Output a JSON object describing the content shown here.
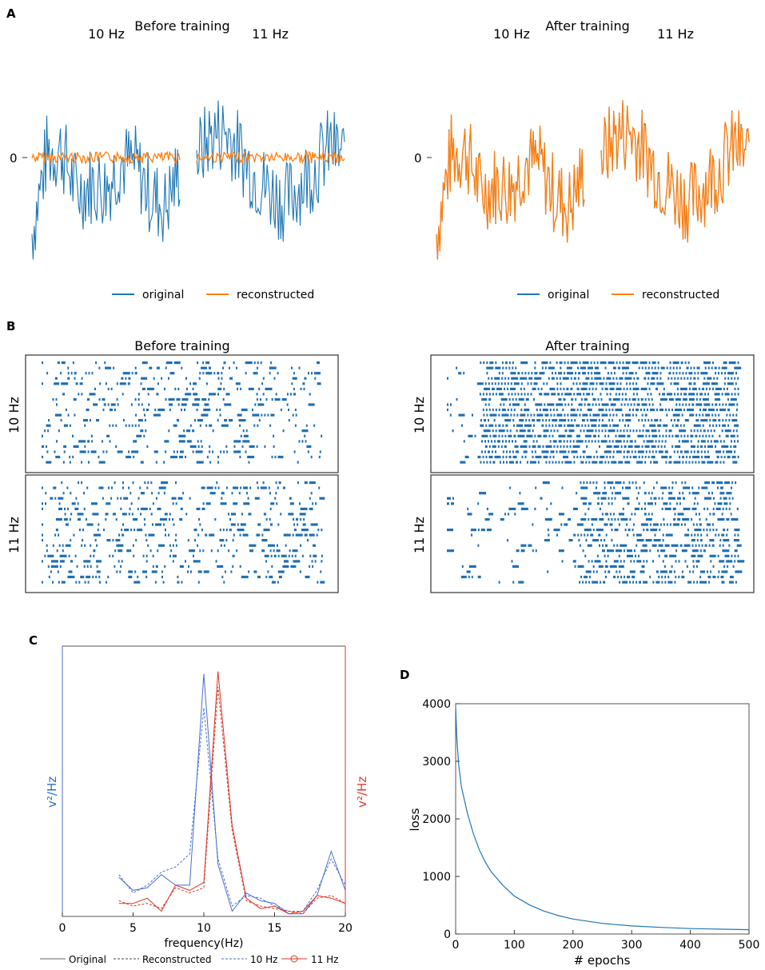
{
  "panels": {
    "A": {
      "letter": "A",
      "before_title": "Before training",
      "after_title": "After training",
      "label_10": "10 Hz",
      "label_11": "11 Hz",
      "zero_tick": "0",
      "legend": {
        "original": "original",
        "reconstructed": "reconstructed"
      }
    },
    "B": {
      "letter": "B",
      "before_title": "Before training",
      "after_title": "After training",
      "row_10": "10 Hz",
      "row_11": "11 Hz"
    },
    "C": {
      "letter": "C",
      "ylabel_left": "v²/Hz",
      "ylabel_right": "v²/Hz",
      "xlabel": "frequency(Hz)",
      "xticks": [
        "0",
        "5",
        "10",
        "15",
        "20"
      ],
      "legend": {
        "original": "Original",
        "reconstructed": "Reconstructed",
        "hz10": "10 Hz",
        "hz11": "11 Hz"
      }
    },
    "D": {
      "letter": "D",
      "xlabel": "# epochs",
      "ylabel": "loss",
      "xticks": [
        "0",
        "100",
        "200",
        "300",
        "400",
        "500"
      ],
      "yticks": [
        "0",
        "1000",
        "2000",
        "3000",
        "4000"
      ]
    }
  },
  "colors": {
    "blue": "#1f77b4",
    "orange": "#ff7f0e",
    "spike": "#1f6fb2",
    "psd_blue": "#4a6fd0",
    "psd_red": "#d9382a"
  },
  "chart_data": [
    {
      "id": "A-before",
      "type": "line",
      "title": "Before training",
      "segments": [
        "10 Hz",
        "11 Hz"
      ],
      "series": [
        {
          "name": "original",
          "values": [
            -0.45,
            0.6,
            0.65,
            0.1,
            0.2,
            0.15,
            0.5,
            0.45,
            0.05,
            -0.1,
            0.4,
            0.55,
            0.85,
            0.9,
            0.6,
            0.3,
            0.1,
            -0.05,
            0.2,
            0.4,
            0.7,
            0.55
          ]
        },
        {
          "name": "reconstructed",
          "values": [
            0.0,
            0.0,
            0.0,
            0.0,
            0.0,
            0.0,
            0.0,
            0.0,
            0.0,
            0.0,
            0.0,
            0.0,
            0.0,
            0.0,
            0.0,
            0.0,
            0.0,
            0.0,
            0.0,
            0.0,
            0.0,
            0.0
          ]
        }
      ]
    },
    {
      "id": "A-after",
      "type": "line",
      "title": "After training",
      "segments": [
        "10 Hz",
        "11 Hz"
      ],
      "series": [
        {
          "name": "original",
          "values": [
            -0.45,
            0.6,
            0.65,
            0.1,
            0.2,
            0.15,
            0.5,
            0.45,
            0.05,
            -0.1,
            0.4,
            0.55,
            0.85,
            0.9,
            0.6,
            0.3,
            0.1,
            -0.05,
            0.2,
            0.4,
            0.7,
            0.55
          ]
        },
        {
          "name": "reconstructed",
          "values": [
            -0.45,
            0.6,
            0.65,
            0.1,
            0.2,
            0.15,
            0.5,
            0.45,
            0.05,
            -0.1,
            0.4,
            0.55,
            0.85,
            0.9,
            0.6,
            0.3,
            0.1,
            -0.05,
            0.2,
            0.4,
            0.7,
            0.55
          ]
        }
      ]
    },
    {
      "id": "B-raster",
      "type": "raster",
      "rows_per_block": 20,
      "blocks": [
        "10 Hz",
        "11 Hz"
      ],
      "density": {
        "before_10": 0.25,
        "before_11": 0.3,
        "after_10": 0.5,
        "after_11": 0.35
      }
    },
    {
      "id": "C-psd",
      "type": "line",
      "xlabel": "frequency(Hz)",
      "xlim": [
        0,
        20
      ],
      "x": [
        4,
        5,
        6,
        7,
        8,
        9,
        10,
        11,
        12,
        13,
        14,
        15,
        16,
        17,
        18,
        19,
        20
      ],
      "series": [
        {
          "name": "Original 10 Hz",
          "values": [
            0.15,
            0.1,
            0.11,
            0.16,
            0.12,
            0.12,
            0.93,
            0.2,
            0.02,
            0.09,
            0.06,
            0.05,
            0.01,
            0.01,
            0.08,
            0.25,
            0.1
          ]
        },
        {
          "name": "Reconstructed 10 Hz",
          "values": [
            0.16,
            0.09,
            0.12,
            0.17,
            0.19,
            0.24,
            0.8,
            0.22,
            0.04,
            0.08,
            0.07,
            0.04,
            0.02,
            0.02,
            0.1,
            0.22,
            0.12
          ]
        },
        {
          "name": "Original 11 Hz",
          "values": [
            0.05,
            0.05,
            0.07,
            0.02,
            0.12,
            0.1,
            0.13,
            0.94,
            0.35,
            0.07,
            0.03,
            0.04,
            0.01,
            0.02,
            0.08,
            0.07,
            0.05
          ]
        },
        {
          "name": "Reconstructed 11 Hz",
          "values": [
            0.06,
            0.04,
            0.05,
            0.03,
            0.11,
            0.09,
            0.11,
            0.88,
            0.33,
            0.06,
            0.04,
            0.03,
            0.02,
            0.01,
            0.07,
            0.08,
            0.05
          ]
        }
      ]
    },
    {
      "id": "D-loss",
      "type": "line",
      "xlabel": "# epochs",
      "ylabel": "loss",
      "xlim": [
        0,
        500
      ],
      "ylim": [
        0,
        4000
      ],
      "x": [
        0,
        2,
        5,
        10,
        20,
        30,
        40,
        50,
        60,
        80,
        100,
        125,
        150,
        175,
        200,
        250,
        300,
        350,
        400,
        450,
        500
      ],
      "values": [
        3950,
        3400,
        2950,
        2550,
        2100,
        1750,
        1470,
        1260,
        1090,
        850,
        660,
        510,
        400,
        320,
        260,
        185,
        140,
        115,
        95,
        85,
        75
      ]
    }
  ]
}
